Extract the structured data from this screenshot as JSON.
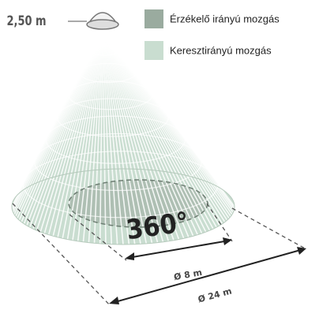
{
  "height_label": "2,50 m",
  "legend": [
    {
      "label": "Érzékelő irányú mozgás",
      "color": "#9aab9f"
    },
    {
      "label": "Keresztirányú mozgás",
      "color": "#c9ddd0"
    }
  ],
  "angle_label": "360°",
  "dimensions": [
    "Ø 8 m",
    "Ø 24 m"
  ]
}
